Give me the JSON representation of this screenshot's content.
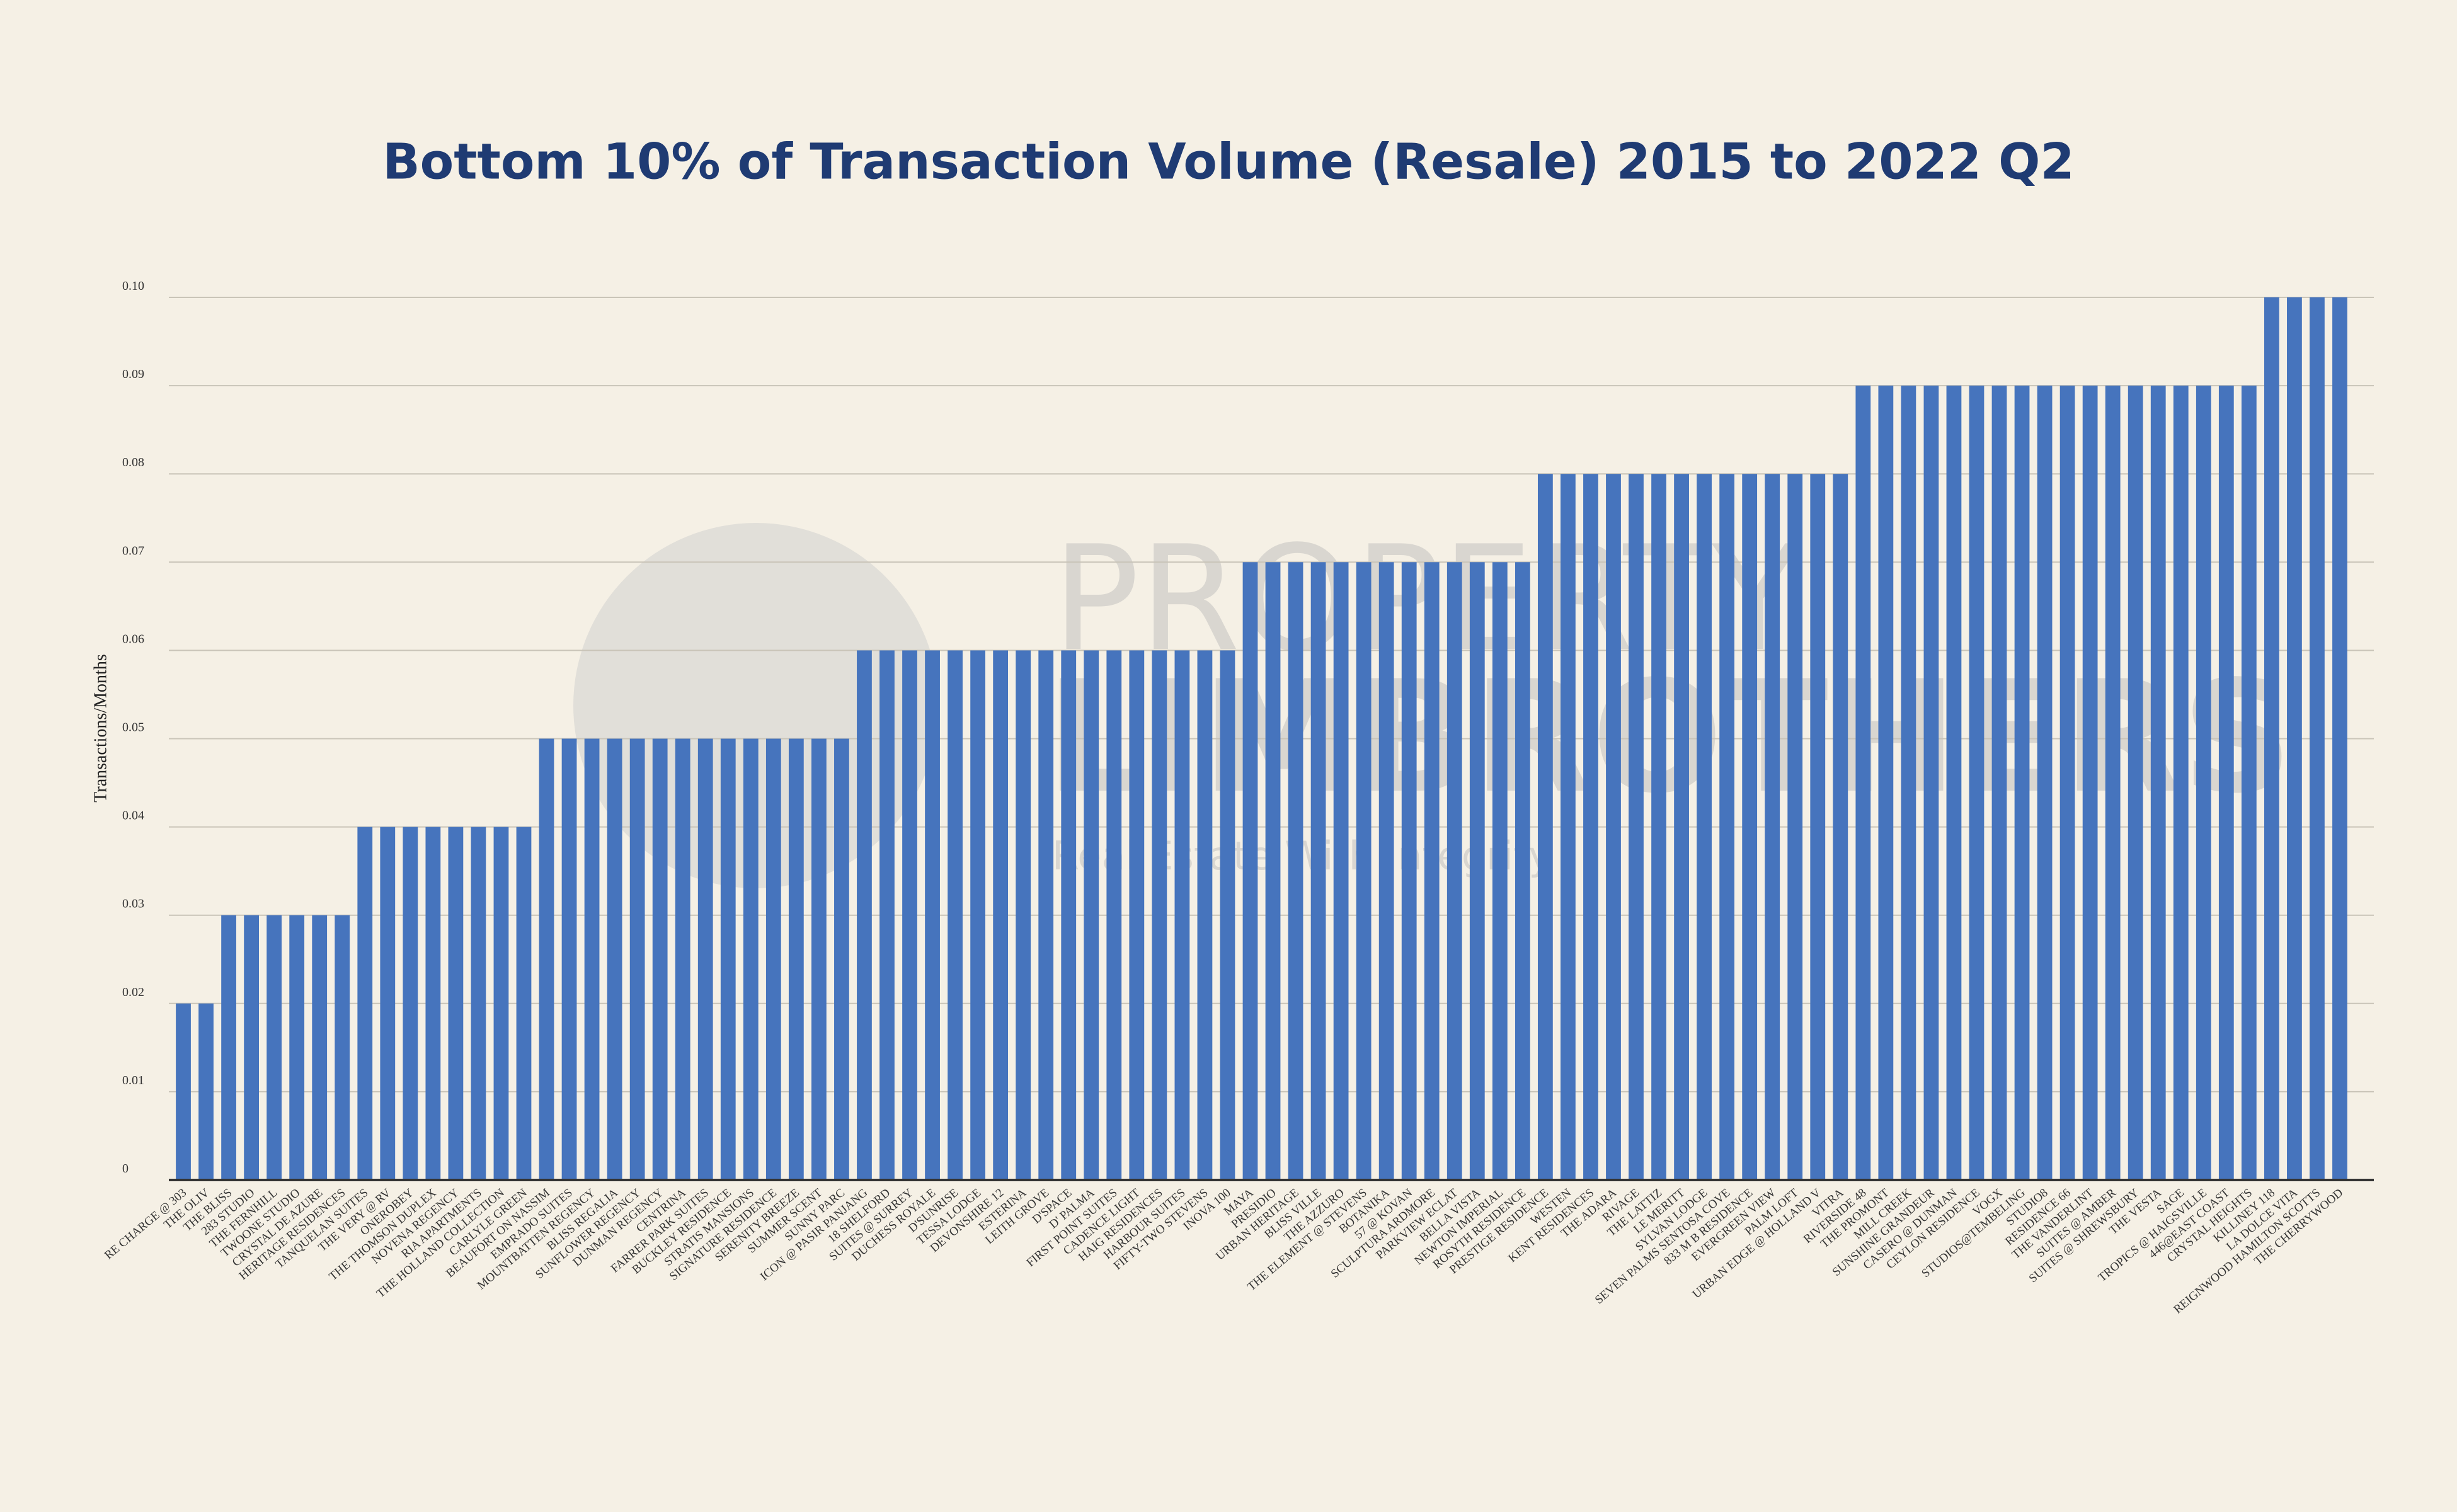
{
  "chart_data": {
    "type": "bar",
    "title": "Bottom 10% of Transaction Volume (Resale) 2015 to 2022 Q2",
    "y_label": "Transactions/Months",
    "watermark": [
      "PROPERTY",
      "LIMBROTHERS",
      "Real Estate With Integrity"
    ],
    "categories": [
      "RE CHARGE @ 303",
      "THE OLIV",
      "THE BLISS",
      "283 STUDIO",
      "THE FERNHILL",
      "TWOONE STUDIO",
      "CRYSTAL DE AZURE",
      "HERITAGE RESIDENCES",
      "TANQUELAN SUITES",
      "THE VERY @ RV",
      "ONEROBEY",
      "THE THOMSON DUPLEX",
      "NOVENA REGENCY",
      "RIA APARTMENTS",
      "THE HOLLAND COLLECTION",
      "CARLYLE GREEN",
      "BEAUFORT ON NASSIM",
      "EMPRADO SUITES",
      "MOUNTBATTEN REGENCY",
      "BLISS REGALIA",
      "SUNFLOWER REGENCY",
      "DUNMAN REGENCY",
      "CENTRINA",
      "FARRER PARK SUITES",
      "BUCKLEY RESIDENCE",
      "STRATIS MANSIONS",
      "SIGNATURE RESIDENCE",
      "SERENITY BREEZE",
      "SUMMER SCENT",
      "SUNNY PARC",
      "ICON @ PASIR PANJANG",
      "18 SHELFORD",
      "SUITES @ SURREY",
      "DUCHESS ROYALE",
      "D'SUNRISE",
      "TESSA LODGE",
      "DEVONSHIRE 12",
      "ESTERINA",
      "LEITH GROVE",
      "D'SPACE",
      "D' PALMA",
      "FIRST POINT SUITES",
      "CADENCE LIGHT",
      "HAIG RESIDENCES",
      "HARBOUR SUITES",
      "FIFTY-TWO STEVENS",
      "INOVA 100",
      "MAYA",
      "PRESIDIO",
      "URBAN HERITAGE",
      "BLISS VILLE",
      "THE AZZURO",
      "THE ELEMENT @ STEVENS",
      "BOTANIKA",
      "57 @ KOVAN",
      "SCULPTURA ARDMORE",
      "PARKVIEW ECLAT",
      "BELLA VISTA",
      "NEWTON IMPERIAL",
      "ROSYTH RESIDENCE",
      "PRESTIGE RESIDENCE",
      "WESTEN",
      "KENT RESIDENCES",
      "THE ADARA",
      "RIVAGE",
      "THE LATTIZ",
      "LE MERITT",
      "SYLVAN LODGE",
      "SEVEN PALMS SENTOSA COVE",
      "833 M B RESIDENCE",
      "EVERGREEN VIEW",
      "PALM LOFT",
      "URBAN EDGE @ HOLLAND V",
      "VITRA",
      "RIVERSIDE 48",
      "THE PROMONT",
      "MILL CREEK",
      "SUNSHINE GRANDEUR",
      "CASERO @ DUNMAN",
      "CEYLON RESIDENCE",
      "VOGX",
      "STUDIOS@TEMBELING",
      "STUDIO8",
      "RESIDENCE 66",
      "THE VANDERLINT",
      "SUITES @ AMBER",
      "SUITES @ SHREWSBURY",
      "THE VESTA",
      "SAGE",
      "TROPICS @ HAIGSVILLE",
      "446@EAST COAST",
      "CRYSTAL HEIGHTS",
      "KILLINEY 118",
      "LA DOLCE VITA",
      "REIGNWOOD HAMILTON SCOTTS",
      "THE CHERRYWOOD"
    ],
    "values": [
      0.02,
      0.02,
      0.03,
      0.03,
      0.03,
      0.03,
      0.03,
      0.03,
      0.04,
      0.04,
      0.04,
      0.04,
      0.04,
      0.04,
      0.04,
      0.04,
      0.05,
      0.05,
      0.05,
      0.05,
      0.05,
      0.05,
      0.05,
      0.05,
      0.05,
      0.05,
      0.05,
      0.05,
      0.05,
      0.05,
      0.06,
      0.06,
      0.06,
      0.06,
      0.06,
      0.06,
      0.06,
      0.06,
      0.06,
      0.06,
      0.06,
      0.06,
      0.06,
      0.06,
      0.06,
      0.06,
      0.06,
      0.07,
      0.07,
      0.07,
      0.07,
      0.07,
      0.07,
      0.07,
      0.07,
      0.07,
      0.07,
      0.07,
      0.07,
      0.07,
      0.08,
      0.08,
      0.08,
      0.08,
      0.08,
      0.08,
      0.08,
      0.08,
      0.08,
      0.08,
      0.08,
      0.08,
      0.08,
      0.08,
      0.09,
      0.09,
      0.09,
      0.09,
      0.09,
      0.09,
      0.09,
      0.09,
      0.09,
      0.09,
      0.09,
      0.09,
      0.09,
      0.09,
      0.09,
      0.09,
      0.09,
      0.09,
      0.1,
      0.1,
      0.1,
      0.1
    ],
    "color": "#4674bd",
    "ylim": [
      0,
      0.1
    ],
    "yticks": [
      0,
      0.01,
      0.02,
      0.03,
      0.04,
      0.05,
      0.06,
      0.07,
      0.08,
      0.09,
      {
        "value": 0.1,
        "label": "0.10"
      }
    ],
    "grid": true
  }
}
